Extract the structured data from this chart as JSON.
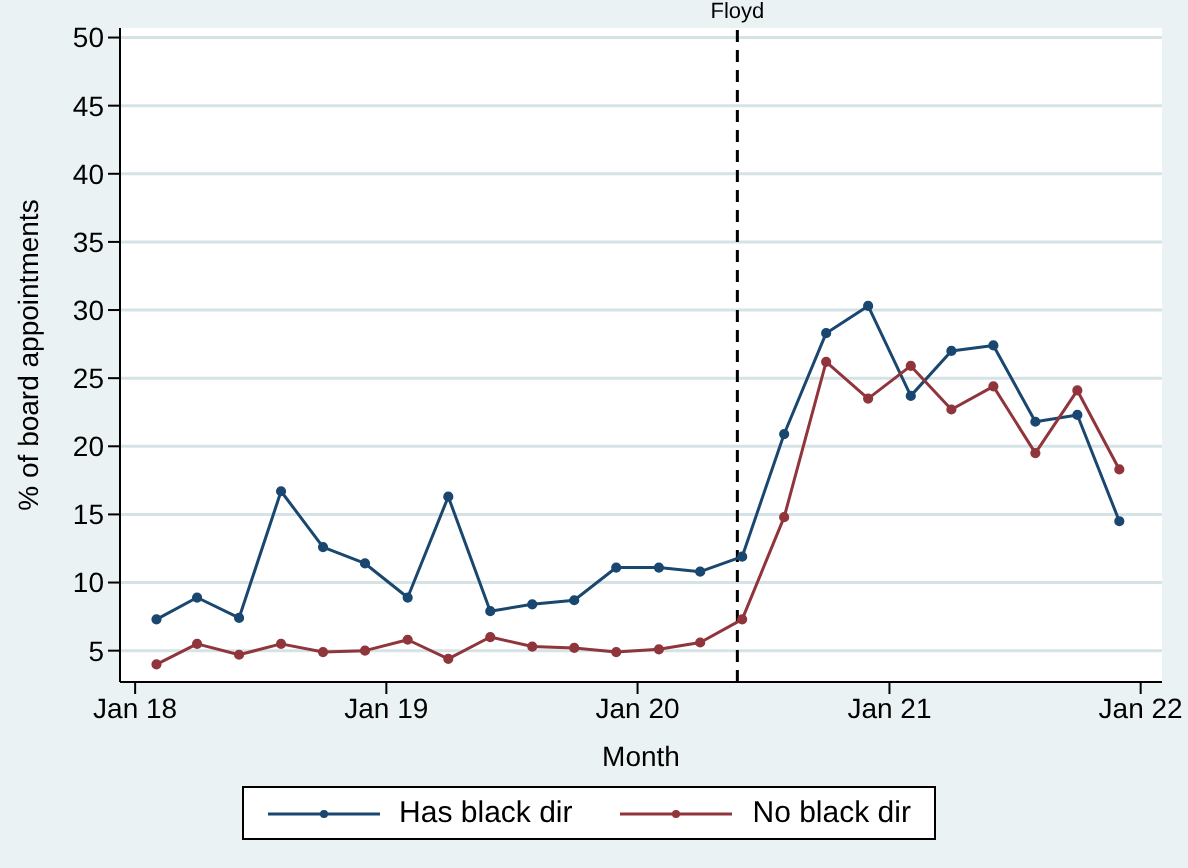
{
  "chart_data": {
    "type": "line",
    "xlabel": "Month",
    "ylabel": "% of board appointments",
    "x": [
      "2018-02",
      "2018-04",
      "2018-06",
      "2018-08",
      "2018-10",
      "2018-12",
      "2019-02",
      "2019-04",
      "2019-06",
      "2019-08",
      "2019-10",
      "2019-12",
      "2020-02",
      "2020-04",
      "2020-06",
      "2020-08",
      "2020-10",
      "2020-12",
      "2021-02",
      "2021-04",
      "2021-06",
      "2021-08",
      "2021-10",
      "2021-12"
    ],
    "series": [
      {
        "name": "Has black dir",
        "color": "#1a476f",
        "values": [
          7.3,
          8.9,
          7.4,
          16.7,
          12.6,
          11.4,
          8.9,
          16.3,
          7.9,
          8.4,
          8.7,
          11.1,
          11.1,
          10.8,
          11.9,
          20.9,
          28.3,
          30.3,
          23.7,
          27.0,
          27.4,
          21.8,
          22.3,
          14.5
        ]
      },
      {
        "name": "No black dir",
        "color": "#90353b",
        "values": [
          4.0,
          5.5,
          4.7,
          5.5,
          4.9,
          5.0,
          5.8,
          4.4,
          6.0,
          5.3,
          5.2,
          4.9,
          5.1,
          5.6,
          7.3,
          14.8,
          26.2,
          23.5,
          25.9,
          22.7,
          24.4,
          19.5,
          24.1,
          18.3
        ]
      }
    ],
    "xlim": [
      "2017-12-10",
      "2022-02-01"
    ],
    "xticks": [
      {
        "value": "2018-01-01",
        "label": "Jan 18"
      },
      {
        "value": "2019-01-01",
        "label": "Jan 19"
      },
      {
        "value": "2020-01-01",
        "label": "Jan 20"
      },
      {
        "value": "2021-01-01",
        "label": "Jan 21"
      },
      {
        "value": "2022-01-01",
        "label": "Jan 22"
      }
    ],
    "ylim": [
      2.7,
      50.7
    ],
    "yticks": [
      5,
      10,
      15,
      20,
      25,
      30,
      35,
      40,
      45,
      50
    ],
    "ref_lines": [
      {
        "axis": "x",
        "value": "2020-05-25",
        "label": "Floyd",
        "color": "#000000",
        "line_style": "dashed"
      }
    ],
    "grid": "y",
    "legend": "bottom",
    "marker": "circle",
    "line_style": "solid"
  }
}
